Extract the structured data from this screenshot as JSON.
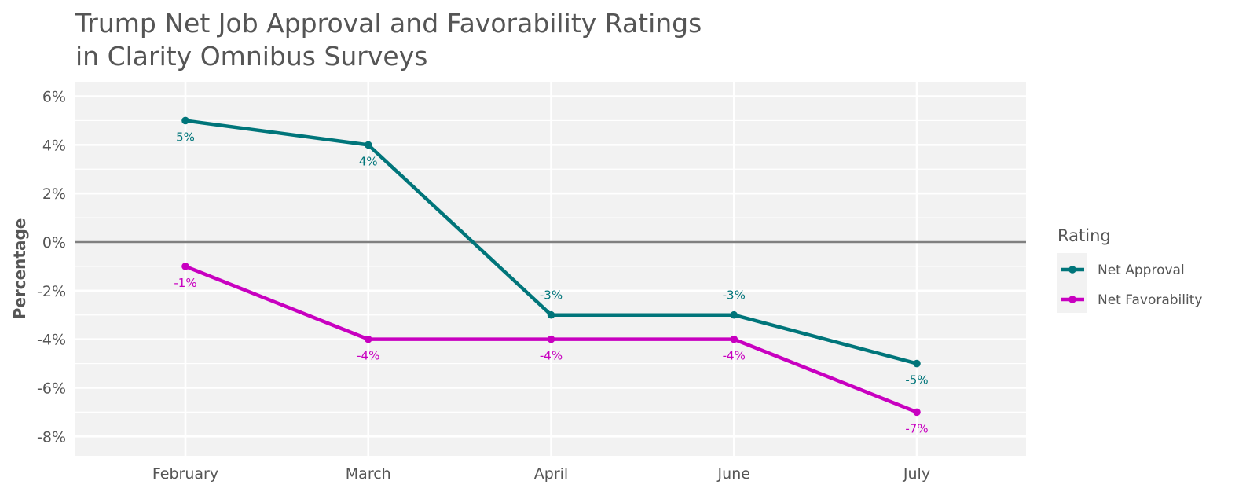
{
  "chart_data": {
    "type": "line",
    "title_lines": [
      "Trump Net Job Approval and Favorability Ratings",
      "in Clarity Omnibus Surveys"
    ],
    "xlabel": "",
    "ylabel": "Percentage",
    "categories": [
      "February",
      "March",
      "April",
      "June",
      "July"
    ],
    "ylim": [
      -8.8,
      6.6
    ],
    "yticks": [
      6,
      4,
      2,
      0,
      -2,
      -4,
      -6,
      -8
    ],
    "ytick_labels": [
      "6%",
      "4%",
      "2%",
      "0%",
      "-2%",
      "-4%",
      "-6%",
      "-8%"
    ],
    "grid": true,
    "reference_line_y": 0,
    "legend": {
      "title": "Rating",
      "placement": "right"
    },
    "series": [
      {
        "name": "Net Approval",
        "color": "#00757A",
        "values": [
          5,
          4,
          -3,
          -3,
          -5
        ],
        "labels": [
          "5%",
          "4%",
          "-3%",
          "-3%",
          "-5%"
        ],
        "label_positions": [
          "below",
          "below",
          "above",
          "above",
          "below"
        ]
      },
      {
        "name": "Net Favorability",
        "color": "#C800C0",
        "values": [
          -1,
          -4,
          -4,
          -4,
          -7
        ],
        "labels": [
          "-1%",
          "-4%",
          "-4%",
          "-4%",
          "-7%"
        ],
        "label_positions": [
          "below",
          "below",
          "below",
          "below",
          "below"
        ]
      }
    ]
  }
}
